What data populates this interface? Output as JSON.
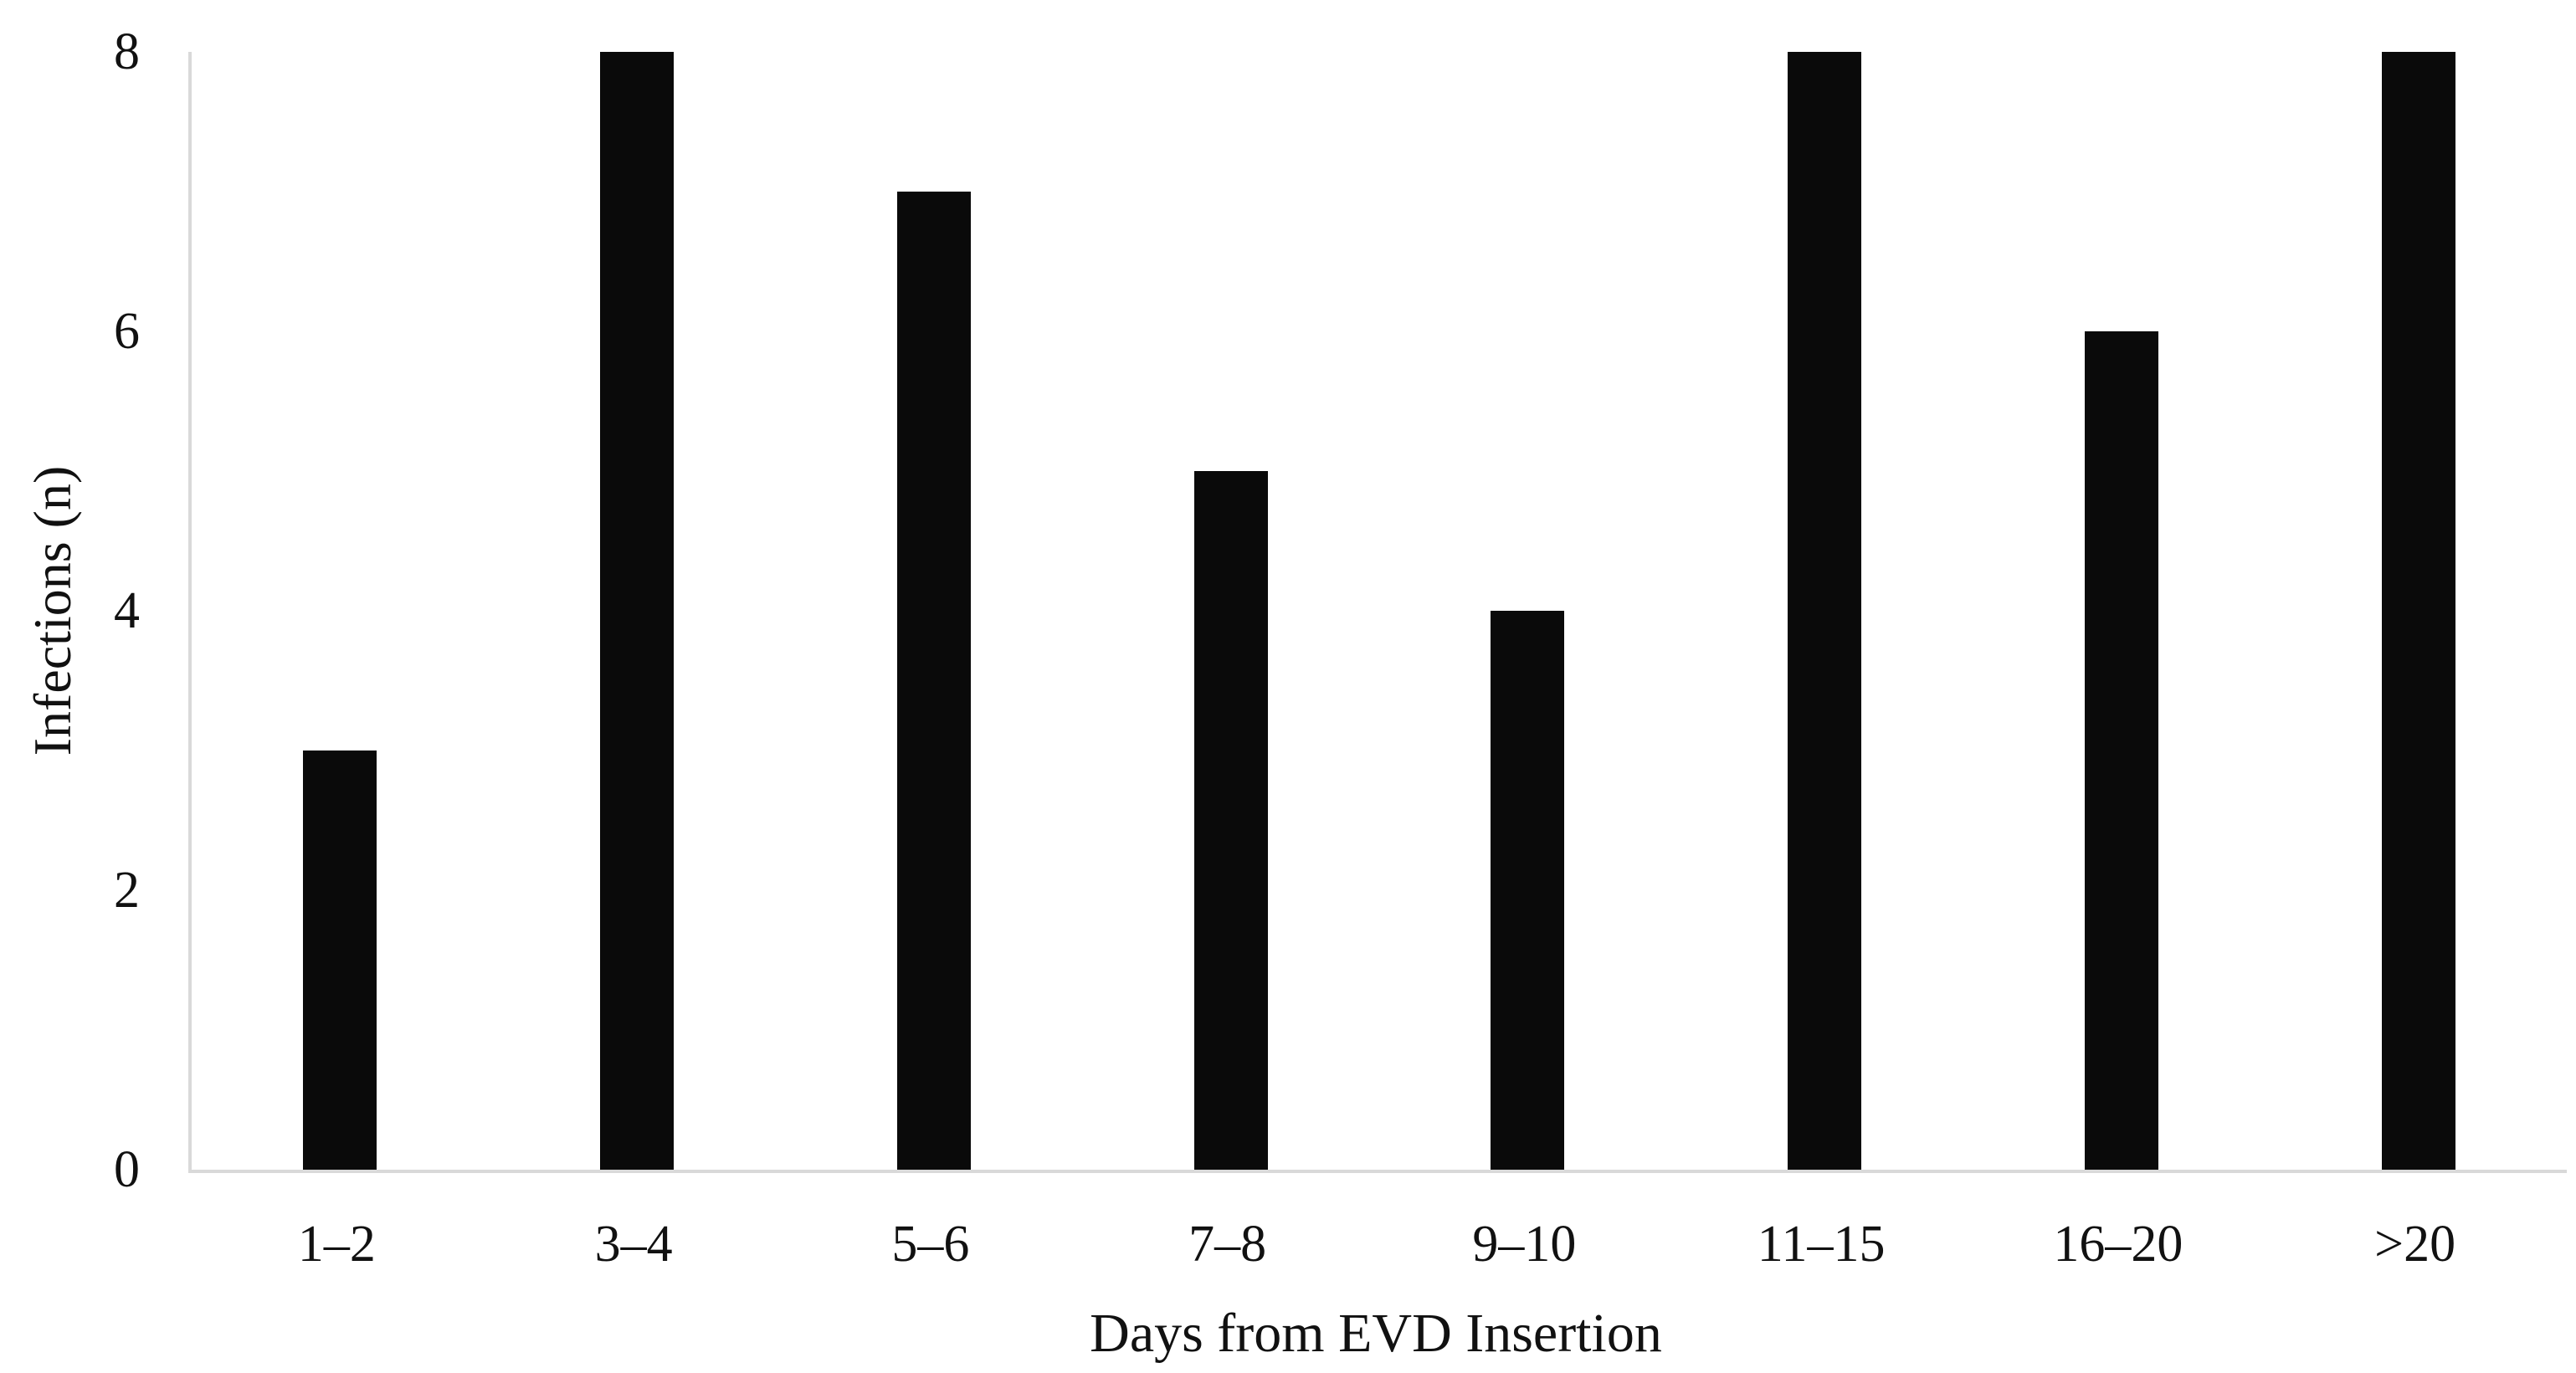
{
  "chart_data": {
    "type": "bar",
    "categories": [
      "1–2",
      "3–4",
      "5–6",
      "7–8",
      "9–10",
      "11–15",
      "16–20",
      ">20"
    ],
    "values": [
      3,
      8,
      7,
      5,
      4,
      8,
      6,
      8
    ],
    "title": "",
    "xlabel": "Days from EVD Insertion",
    "ylabel": "Infections (n)",
    "ylim": [
      0,
      8
    ],
    "yticks": [
      0,
      2,
      4,
      6,
      8
    ],
    "grid": false,
    "legend": false,
    "bar_color": "#0a0a0a",
    "axis_line_color": "#d9d9d9",
    "text_color": "#111111",
    "background_color": "#ffffff"
  }
}
